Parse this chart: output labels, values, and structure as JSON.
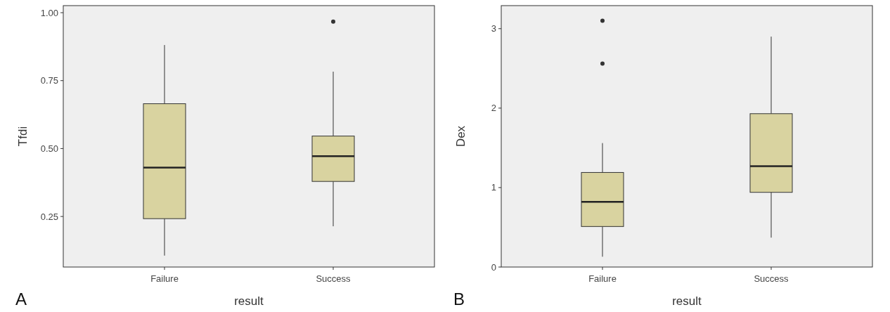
{
  "chart_data": [
    {
      "type": "box",
      "categories": [
        "Failure",
        "Success"
      ],
      "xlabel": "result",
      "ylabel": "Tfdi",
      "ylim": [
        0.064,
        1.026
      ],
      "yticks": [
        {
          "value": 0.25,
          "label": "0.25"
        },
        {
          "value": 0.5,
          "label": "0.50"
        },
        {
          "value": 0.75,
          "label": "0.75"
        },
        {
          "value": 1,
          "label": "1.00"
        }
      ],
      "grid": false,
      "color": "#d9d3a0",
      "annotations": [
        "A"
      ],
      "boxes": [
        {
          "low": 0.106,
          "q1": 0.242,
          "median": 0.43,
          "q3": 0.665,
          "high": 0.881
        },
        {
          "low": 0.214,
          "q1": 0.379,
          "median": 0.472,
          "q3": 0.546,
          "high": 0.783,
          "outliers": [
            0.967
          ]
        }
      ]
    },
    {
      "type": "box",
      "categories": [
        "Failure",
        "Success"
      ],
      "xlabel": "result",
      "ylabel": "Dex",
      "ylim": [
        0,
        3.29
      ],
      "yticks": [
        0,
        1,
        2,
        3
      ],
      "grid": false,
      "color": "#d9d3a0",
      "annotations": [
        "B"
      ],
      "boxes": [
        {
          "low": 0.13,
          "q1": 0.51,
          "median": 0.82,
          "q3": 1.19,
          "high": 1.56,
          "outliers": [
            3.1,
            2.56
          ]
        },
        {
          "low": 0.37,
          "q1": 0.94,
          "median": 1.27,
          "q3": 1.93,
          "high": 2.9
        }
      ]
    }
  ]
}
